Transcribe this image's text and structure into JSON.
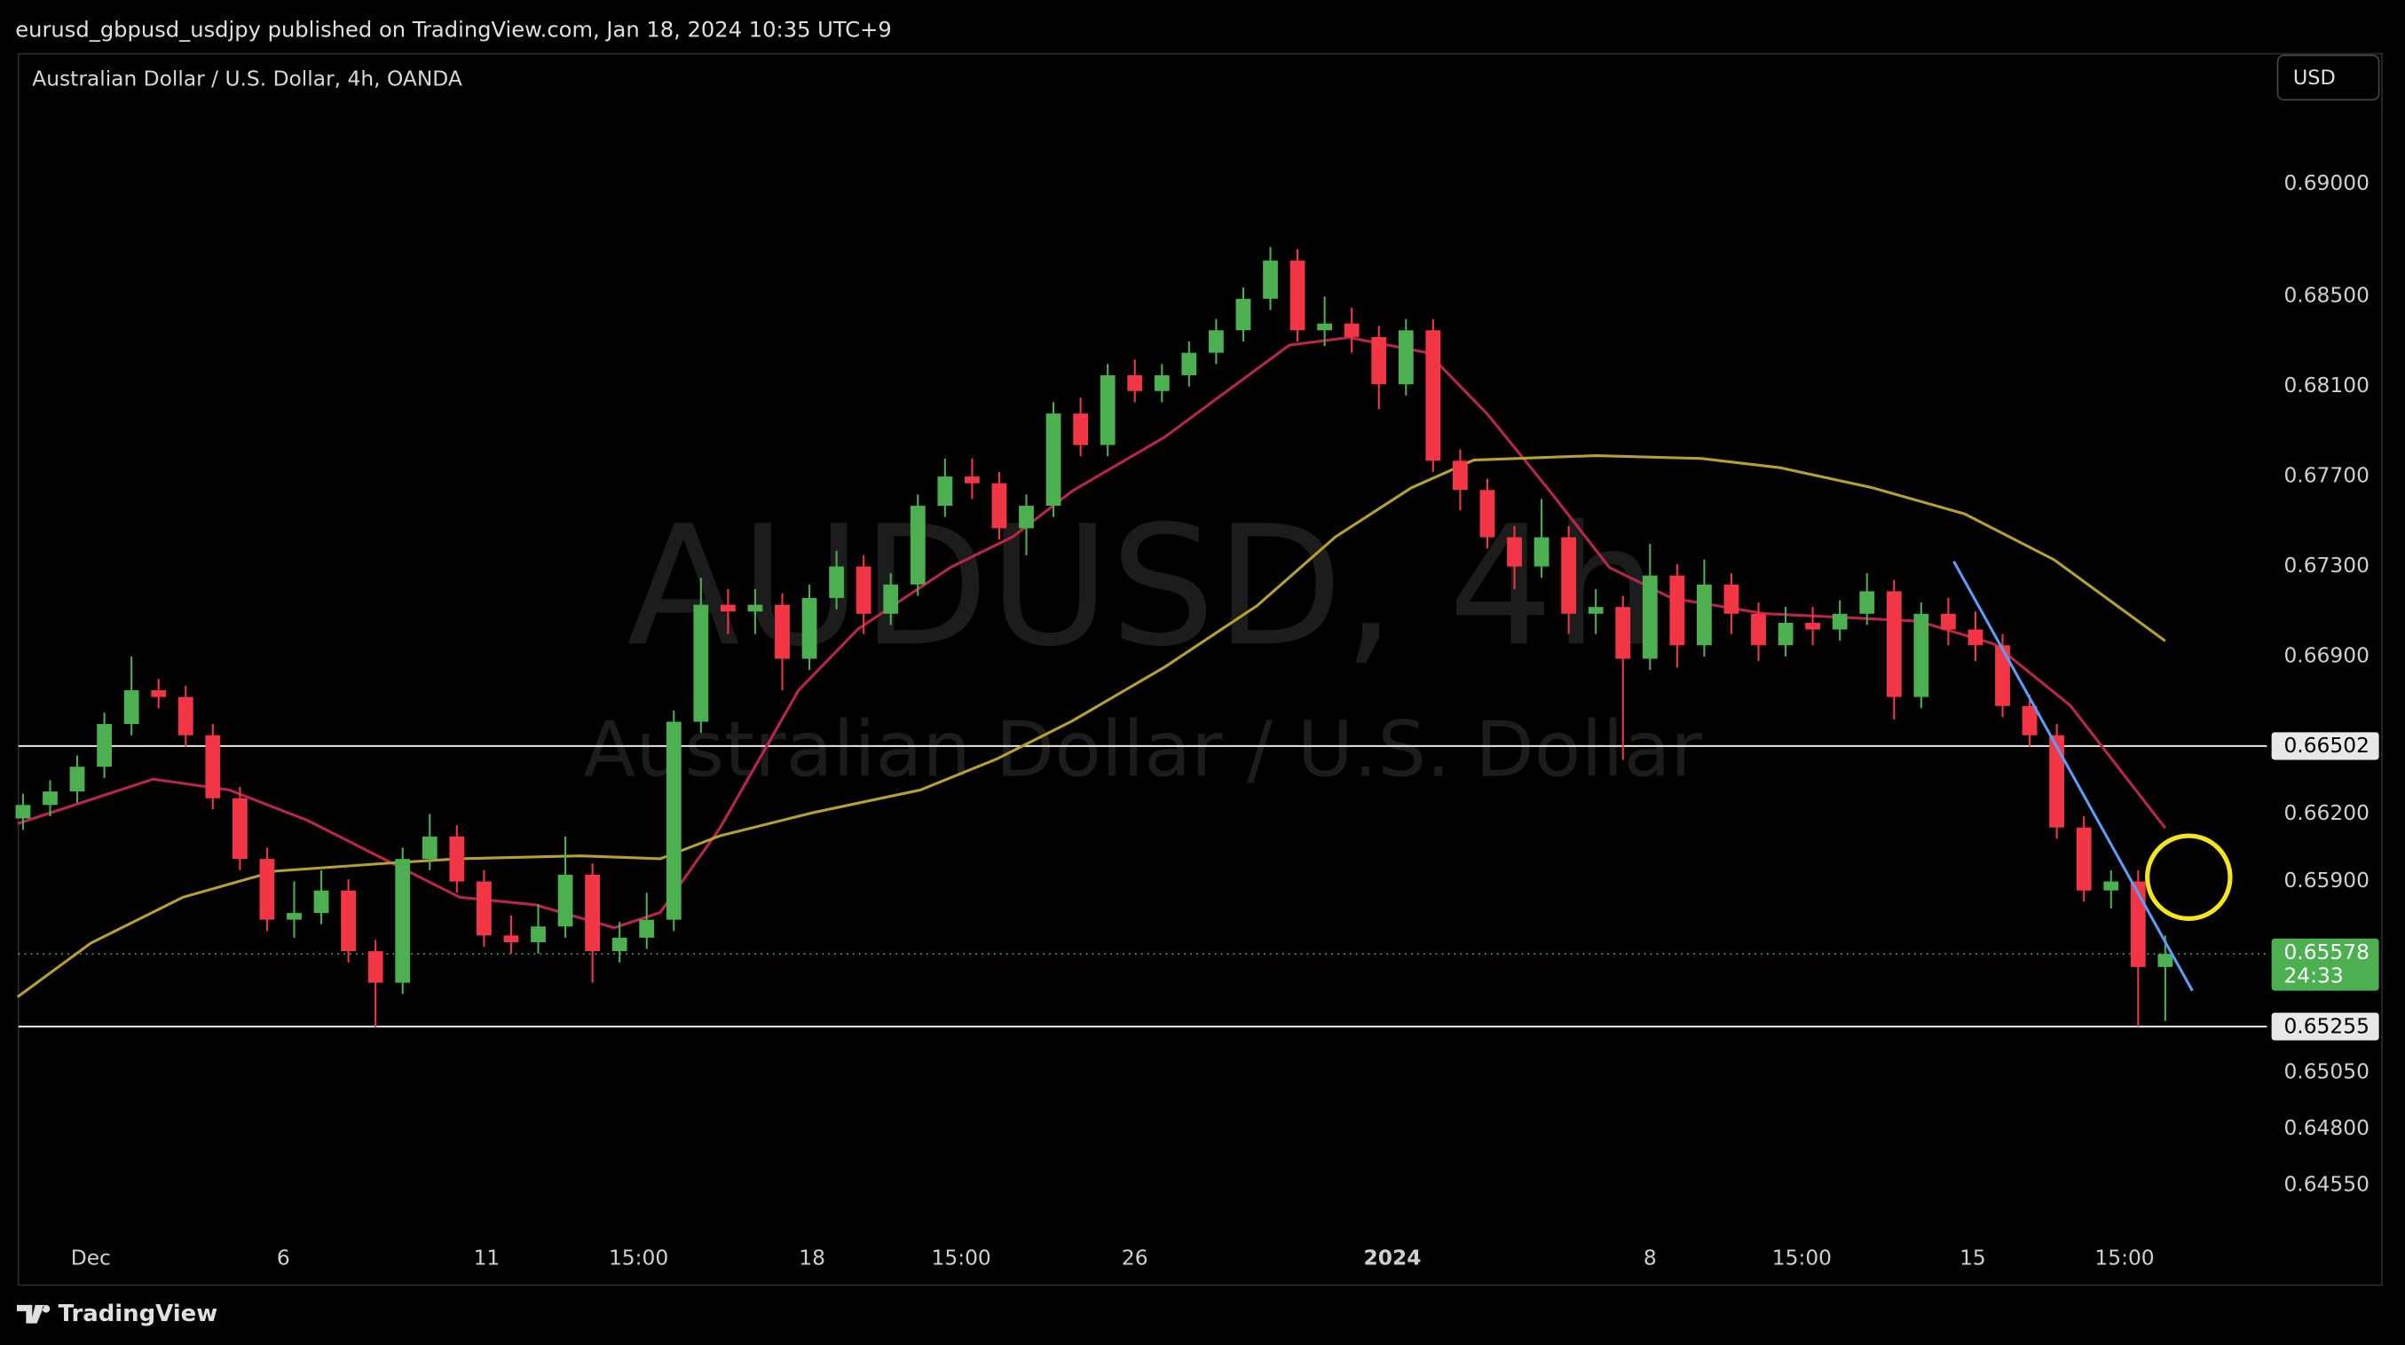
{
  "page": {
    "header": "eurusd_gbpusd_usdjpy published on TradingView.com, Jan 18, 2024 10:35 UTC+9",
    "currency": "USD",
    "footer": "TradingView"
  },
  "chart_data": {
    "type": "candlestick",
    "title": "Australian Dollar / U.S. Dollar, 4h, OANDA",
    "watermark": "AUDUSD, 4h",
    "watermark_subtitle": "Australian Dollar / U.S. Dollar",
    "up_color": "#4caf50",
    "down_color": "#f23645",
    "x": [
      0,
      1,
      2,
      3,
      4,
      5,
      6,
      7,
      8,
      9,
      10,
      11,
      12,
      13,
      14,
      15,
      16,
      17,
      18,
      19,
      20,
      21,
      22,
      23,
      24,
      25,
      26,
      27,
      28,
      29,
      30,
      31,
      32,
      33,
      34,
      35,
      36,
      37,
      38,
      39,
      40,
      41,
      42,
      43,
      44,
      45,
      46,
      47,
      48,
      49,
      50,
      51,
      52,
      53,
      54,
      55,
      56,
      57,
      58,
      59,
      60,
      61,
      62,
      63,
      64,
      65,
      66,
      67,
      68,
      69,
      70,
      71,
      72,
      73,
      74,
      75,
      76,
      77,
      78,
      79
    ],
    "open": [
      0.6618,
      0.6624,
      0.663,
      0.6641,
      0.666,
      0.6675,
      0.6672,
      0.6655,
      0.6627,
      0.66,
      0.6573,
      0.6576,
      0.6586,
      0.6559,
      0.6545,
      0.66,
      0.661,
      0.659,
      0.6566,
      0.6563,
      0.657,
      0.6593,
      0.6559,
      0.6565,
      0.6573,
      0.6661,
      0.6713,
      0.671,
      0.6713,
      0.6689,
      0.6716,
      0.673,
      0.6709,
      0.6722,
      0.6757,
      0.677,
      0.6767,
      0.6747,
      0.6757,
      0.6798,
      0.6784,
      0.6815,
      0.6808,
      0.6815,
      0.6825,
      0.6835,
      0.6849,
      0.6866,
      0.6835,
      0.6838,
      0.6832,
      0.6811,
      0.6835,
      0.6777,
      0.6764,
      0.6743,
      0.673,
      0.6743,
      0.6709,
      0.6712,
      0.6689,
      0.6726,
      0.6695,
      0.6722,
      0.6709,
      0.6695,
      0.6705,
      0.6702,
      0.6709,
      0.6719,
      0.6672,
      0.6709,
      0.6702,
      0.6695,
      0.6668,
      0.6655,
      0.6614,
      0.6586,
      0.659,
      0.6552
    ],
    "high": [
      0.6629,
      0.6635,
      0.6646,
      0.6665,
      0.669,
      0.668,
      0.6677,
      0.666,
      0.6632,
      0.6605,
      0.659,
      0.6595,
      0.6591,
      0.6564,
      0.6605,
      0.662,
      0.6615,
      0.6595,
      0.6575,
      0.658,
      0.661,
      0.6598,
      0.6572,
      0.6585,
      0.6666,
      0.6725,
      0.672,
      0.672,
      0.6718,
      0.6722,
      0.6737,
      0.6735,
      0.6727,
      0.6762,
      0.6778,
      0.6778,
      0.6772,
      0.6762,
      0.6803,
      0.6805,
      0.682,
      0.6822,
      0.682,
      0.683,
      0.684,
      0.6854,
      0.6872,
      0.6871,
      0.685,
      0.6845,
      0.6837,
      0.684,
      0.684,
      0.6782,
      0.6769,
      0.6748,
      0.676,
      0.6748,
      0.672,
      0.6717,
      0.674,
      0.6731,
      0.6733,
      0.6727,
      0.6714,
      0.6712,
      0.6712,
      0.6715,
      0.6727,
      0.6724,
      0.6714,
      0.6716,
      0.671,
      0.67,
      0.6673,
      0.666,
      0.6619,
      0.6595,
      0.6595,
      0.6566
    ],
    "low": [
      0.6613,
      0.6619,
      0.6625,
      0.6636,
      0.6655,
      0.6667,
      0.665,
      0.6622,
      0.6595,
      0.6568,
      0.6565,
      0.6571,
      0.6554,
      0.6525,
      0.654,
      0.6595,
      0.6585,
      0.6561,
      0.6558,
      0.6558,
      0.6565,
      0.6545,
      0.6554,
      0.656,
      0.6568,
      0.6656,
      0.67,
      0.67,
      0.6675,
      0.6684,
      0.6711,
      0.67,
      0.6704,
      0.6717,
      0.6752,
      0.676,
      0.6742,
      0.6735,
      0.6752,
      0.6779,
      0.6779,
      0.6803,
      0.6803,
      0.681,
      0.682,
      0.683,
      0.6844,
      0.683,
      0.6828,
      0.6825,
      0.68,
      0.6806,
      0.6772,
      0.6755,
      0.6738,
      0.672,
      0.6725,
      0.67,
      0.67,
      0.6644,
      0.6684,
      0.6685,
      0.669,
      0.67,
      0.6688,
      0.669,
      0.6695,
      0.6697,
      0.6704,
      0.6662,
      0.6667,
      0.6695,
      0.6688,
      0.6663,
      0.665,
      0.6609,
      0.6581,
      0.6578,
      0.65255,
      0.6528
    ],
    "close": [
      0.6624,
      0.663,
      0.6641,
      0.666,
      0.6675,
      0.6672,
      0.6655,
      0.6627,
      0.66,
      0.6573,
      0.6576,
      0.6586,
      0.6559,
      0.6545,
      0.66,
      0.661,
      0.659,
      0.6566,
      0.6563,
      0.657,
      0.6593,
      0.6559,
      0.6565,
      0.6573,
      0.6661,
      0.6713,
      0.671,
      0.6713,
      0.6689,
      0.6716,
      0.673,
      0.6709,
      0.6722,
      0.6757,
      0.677,
      0.6767,
      0.6747,
      0.6757,
      0.6798,
      0.6784,
      0.6815,
      0.6808,
      0.6815,
      0.6825,
      0.6835,
      0.6849,
      0.6866,
      0.6835,
      0.6838,
      0.6832,
      0.6811,
      0.6835,
      0.6777,
      0.6764,
      0.6743,
      0.673,
      0.6743,
      0.6709,
      0.6712,
      0.6689,
      0.6726,
      0.6695,
      0.6722,
      0.6709,
      0.6695,
      0.6705,
      0.6702,
      0.6709,
      0.6719,
      0.6672,
      0.6709,
      0.6702,
      0.6695,
      0.6668,
      0.6655,
      0.6614,
      0.6586,
      0.659,
      0.6552,
      0.65578
    ],
    "overlays": [
      {
        "color": "#b8264a",
        "x": [
          -0.2,
          4.8,
          7.6,
          10.5,
          13.3,
          16.1,
          18.9,
          21.8,
          23.5,
          25.7,
          28.6,
          30.8,
          34.2,
          36.5,
          38.7,
          42.1,
          44.4,
          46.7,
          48.9,
          51.8,
          54,
          56.3,
          58.5,
          60.8,
          64.2,
          69.9,
          72.7,
          75.5,
          79
        ],
        "values": [
          0.66157,
          0.66355,
          0.66307,
          0.66171,
          0.66,
          0.6583,
          0.65796,
          0.65694,
          0.65762,
          0.66137,
          0.6675,
          0.67023,
          0.67296,
          0.67432,
          0.67636,
          0.67875,
          0.6808,
          0.68284,
          0.68318,
          0.6825,
          0.67978,
          0.67636,
          0.67296,
          0.67159,
          0.67091,
          0.67057,
          0.66955,
          0.66682,
          0.66137
        ]
      },
      {
        "color": "#b5a030",
        "x": [
          -0.2,
          2.5,
          5.9,
          9.3,
          13.3,
          16.1,
          20.6,
          23.5,
          25.7,
          29.1,
          33.1,
          35.9,
          38.7,
          42.1,
          45.5,
          48.4,
          51.2,
          53.5,
          58,
          61.9,
          64.8,
          68.2,
          71.6,
          74.9,
          79
        ],
        "values": [
          0.65387,
          0.65626,
          0.6583,
          0.65946,
          0.6598,
          0.66001,
          0.66014,
          0.66001,
          0.66103,
          0.66205,
          0.66307,
          0.66444,
          0.66614,
          0.66853,
          0.67125,
          0.67432,
          0.6765,
          0.67773,
          0.67793,
          0.6778,
          0.67739,
          0.6765,
          0.67534,
          0.6733,
          0.66969
        ]
      }
    ],
    "trendline": {
      "color": "#5b9cf6",
      "x": [
        71.2,
        80.0
      ],
      "values": [
        0.67323,
        0.65414
      ]
    },
    "levels": [
      0.66502,
      0.65255
    ],
    "last_price": 0.65578,
    "last_price_label": "0.65578",
    "countdown": "24:33",
    "xlim": [
      -0.17,
      82.75
    ],
    "ylim": [
      0.64106,
      0.69579
    ],
    "xticks": [
      {
        "value": 2.5,
        "label": "Dec"
      },
      {
        "value": 9.6,
        "label": "6"
      },
      {
        "value": 17.1,
        "label": "11"
      },
      {
        "value": 22.7,
        "label": "15:00"
      },
      {
        "value": 29.1,
        "label": "18"
      },
      {
        "value": 34.6,
        "label": "15:00"
      },
      {
        "value": 41,
        "label": "26"
      },
      {
        "value": 50.5,
        "label": "2024"
      },
      {
        "value": 60,
        "label": "8"
      },
      {
        "value": 65.6,
        "label": "15:00"
      },
      {
        "value": 71.9,
        "label": "15"
      },
      {
        "value": 77.5,
        "label": "15:00"
      }
    ],
    "yticks": [
      {
        "value": 0.69,
        "label": "0.69000"
      },
      {
        "value": 0.685,
        "label": "0.68500"
      },
      {
        "value": 0.681,
        "label": "0.68100"
      },
      {
        "value": 0.677,
        "label": "0.67700"
      },
      {
        "value": 0.673,
        "label": "0.67300"
      },
      {
        "value": 0.669,
        "label": "0.66900"
      },
      {
        "value": 0.662,
        "label": "0.66200"
      },
      {
        "value": 0.659,
        "label": "0.65900"
      },
      {
        "value": 0.6505,
        "label": "0.65050"
      },
      {
        "value": 0.648,
        "label": "0.64800"
      },
      {
        "value": 0.6455,
        "label": "0.64550"
      }
    ],
    "grid": false
  }
}
